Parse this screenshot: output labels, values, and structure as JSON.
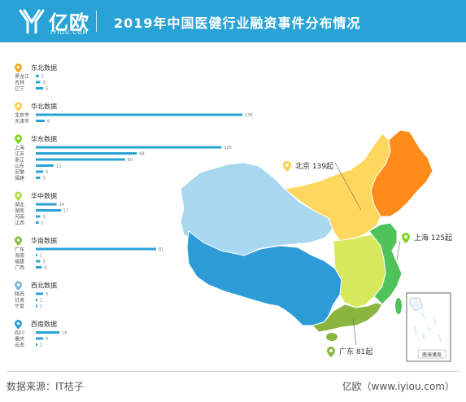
{
  "header": {
    "logo_text": "亿欧",
    "logo_sub": "IYIOU.COM",
    "title": "2019年中国医健行业融资事件分布情况"
  },
  "colors": {
    "header_bg": "#29a3d6",
    "bar": "#29a3d6",
    "north": "#ffd75e",
    "northeast": "#ff8c1a",
    "northwest": "#a8d8f0",
    "southwest": "#2d9bd6",
    "central": "#d7e95c",
    "east": "#4fc35a",
    "south": "#8ab63f"
  },
  "chart_data": {
    "type": "bar",
    "orientation": "horizontal",
    "groups": [
      {
        "name": "东北数据",
        "icon_color": "#f5a623",
        "items": [
          {
            "label": "黑龙江",
            "value": 2
          },
          {
            "label": "吉林",
            "value": 3
          },
          {
            "label": "辽宁",
            "value": 5
          }
        ]
      },
      {
        "name": "华北数据",
        "icon_color": "#f6d34a",
        "items": [
          {
            "label": "北京市",
            "value": 139
          },
          {
            "label": "天津市",
            "value": 6
          }
        ]
      },
      {
        "name": "华东数据",
        "icon_color": "#7ed321",
        "items": [
          {
            "label": "上海",
            "value": 125
          },
          {
            "label": "江苏",
            "value": 68
          },
          {
            "label": "浙江",
            "value": 60
          },
          {
            "label": "山东",
            "value": 12
          },
          {
            "label": "安徽",
            "value": 5
          },
          {
            "label": "福建",
            "value": 3
          }
        ]
      },
      {
        "name": "华中数据",
        "icon_color": "#b8d94a",
        "items": [
          {
            "label": "湖北",
            "value": 14
          },
          {
            "label": "湖南",
            "value": 17
          },
          {
            "label": "河南",
            "value": 3
          },
          {
            "label": "江西",
            "value": 2
          }
        ]
      },
      {
        "name": "华南数据",
        "icon_color": "#8ab63f",
        "items": [
          {
            "label": "广东",
            "value": 81
          },
          {
            "label": "海南",
            "value": 1
          },
          {
            "label": "福建",
            "value": 3
          },
          {
            "label": "广西",
            "value": 4
          }
        ]
      },
      {
        "name": "西北数据",
        "icon_color": "#7ab8d8",
        "items": [
          {
            "label": "陕西",
            "value": 5
          },
          {
            "label": "甘肃",
            "value": 1
          },
          {
            "label": "宁夏",
            "value": 1
          }
        ]
      },
      {
        "name": "西南数据",
        "icon_color": "#2d9bd6",
        "items": [
          {
            "label": "四川",
            "value": 16
          },
          {
            "label": "重庆",
            "value": 5
          },
          {
            "label": "云南",
            "value": 1
          }
        ]
      }
    ],
    "callouts": [
      {
        "text": "北京 139起",
        "icon_color": "#f6d34a"
      },
      {
        "text": "上海 125起",
        "icon_color": "#7ed321"
      },
      {
        "text": "广东 81起",
        "icon_color": "#8ab63f"
      }
    ],
    "inset_label": "南海诸岛"
  },
  "footer": {
    "source": "数据来源：IT桔子",
    "credit": "亿欧（www.iyiou.com）"
  }
}
